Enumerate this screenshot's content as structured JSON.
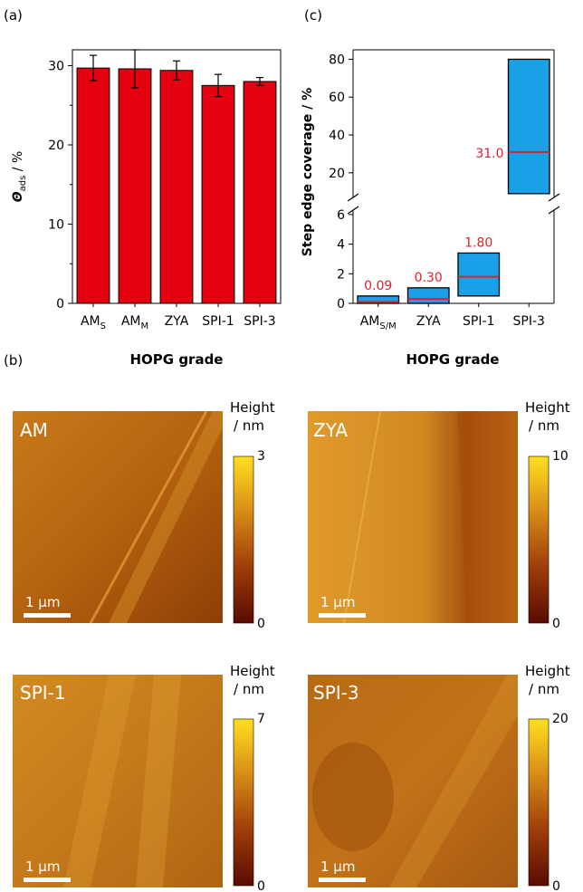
{
  "panel_labels": {
    "a": "(a)",
    "b": "(b)",
    "c": "(c)"
  },
  "chart_data": [
    {
      "type": "bar",
      "panel": "(a)",
      "categories": [
        "AM_S",
        "AM_M",
        "ZYA",
        "SPI-1",
        "SPI-3"
      ],
      "category_labels": [
        {
          "main": "AM",
          "sub": "S"
        },
        {
          "main": "AM",
          "sub": "M"
        },
        {
          "main": "ZYA",
          "sub": ""
        },
        {
          "main": "SPI-1",
          "sub": ""
        },
        {
          "main": "SPI-3",
          "sub": ""
        }
      ],
      "values": [
        29.7,
        29.6,
        29.4,
        27.5,
        28.0
      ],
      "errors": [
        1.6,
        2.4,
        1.2,
        1.4,
        0.5
      ],
      "ylabel": {
        "sym": "Θ",
        "sub": "ads",
        "rest": " / %"
      },
      "xlabel": "HOPG grade",
      "ylim": [
        0,
        32
      ],
      "yticks": [
        0,
        10,
        20,
        30
      ],
      "bar_color": "#e3000f",
      "grid": false
    },
    {
      "type": "bar",
      "panel": "(c)",
      "subtype": "floating-box",
      "categories": [
        "AM_S/M",
        "ZYA",
        "SPI-1",
        "SPI-3"
      ],
      "category_labels": [
        {
          "main": "AM",
          "sub": "S/M"
        },
        {
          "main": "ZYA",
          "sub": ""
        },
        {
          "main": "SPI-1",
          "sub": ""
        },
        {
          "main": "SPI-3",
          "sub": ""
        }
      ],
      "boxes": [
        {
          "low": 0,
          "high": 0.5,
          "median": 0.09,
          "label": "0.09"
        },
        {
          "low": 0,
          "high": 1.05,
          "median": 0.3,
          "label": "0.30"
        },
        {
          "low": 0.5,
          "high": 3.4,
          "median": 1.8,
          "label": "1.80"
        },
        {
          "low": 9,
          "high": 80,
          "median": 31.0,
          "label": "31.0"
        }
      ],
      "ylabel": "Step edge coverage / %",
      "xlabel": "HOPG grade",
      "broken_axis": true,
      "ylim_lower": [
        0,
        6.3
      ],
      "ylim_upper": [
        7,
        85
      ],
      "yticks_lower": [
        0,
        2,
        4,
        6
      ],
      "yticks_upper": [
        20,
        40,
        60,
        80
      ],
      "box_color": "#1aa0e6",
      "median_color": "#e0202a",
      "grid": false
    }
  ],
  "afm_panels": [
    {
      "label": "AM",
      "colorbar_title": "Height",
      "colorbar_unit": "/ nm",
      "max": "3",
      "min": "0",
      "scalebar": "1 µm"
    },
    {
      "label": "ZYA",
      "colorbar_title": "Height",
      "colorbar_unit": "/ nm",
      "max": "10",
      "min": "0",
      "scalebar": "1 µm"
    },
    {
      "label": "SPI-1",
      "colorbar_title": "Height",
      "colorbar_unit": "/ nm",
      "max": "7",
      "min": "0",
      "scalebar": "1 µm"
    },
    {
      "label": "SPI-3",
      "colorbar_title": "Height",
      "colorbar_unit": "/ nm",
      "max": "20",
      "min": "0",
      "scalebar": "1 µm"
    }
  ]
}
